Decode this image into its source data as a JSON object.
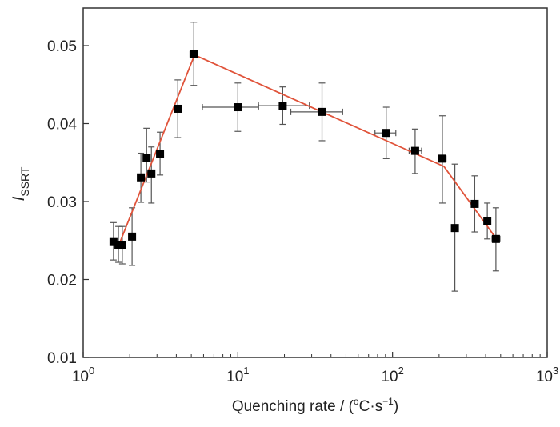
{
  "chart_data": {
    "type": "scatter",
    "title": "",
    "xlabel": "Quenching rate / (ºC·s⁻¹)",
    "xlabel_parts": {
      "main": "Quenching rate / (",
      "sup1": "o",
      "mid": "C·s",
      "sup2": "−1",
      "end": ")"
    },
    "ylabel": {
      "main": "I",
      "sub": "SSRT"
    },
    "xscale": "log",
    "xlim": [
      1,
      1000
    ],
    "ylim": [
      0.01,
      0.055
    ],
    "xticks": [
      {
        "v": 1,
        "base": "10",
        "exp": "0"
      },
      {
        "v": 10,
        "base": "10",
        "exp": "1"
      },
      {
        "v": 100,
        "base": "10",
        "exp": "2"
      },
      {
        "v": 1000,
        "base": "10",
        "exp": "3"
      }
    ],
    "yticks": [
      {
        "v": 0.01,
        "label": "0.01"
      },
      {
        "v": 0.02,
        "label": "0.02"
      },
      {
        "v": 0.03,
        "label": "0.03"
      },
      {
        "v": 0.04,
        "label": "0.04"
      },
      {
        "v": 0.05,
        "label": "0.05"
      }
    ],
    "grid": false,
    "marker_color": "#000000",
    "errorbar_color": "#555555",
    "fit_color": "#e0533a",
    "points": [
      {
        "x": 1.57,
        "y": 0.0248,
        "ylo": 0.0225,
        "yhi": 0.0273
      },
      {
        "x": 1.69,
        "y": 0.0244,
        "ylo": 0.0222,
        "yhi": 0.0268
      },
      {
        "x": 1.79,
        "y": 0.0244,
        "ylo": 0.022,
        "yhi": 0.0268
      },
      {
        "x": 2.07,
        "y": 0.0255,
        "ylo": 0.0218,
        "yhi": 0.0292
      },
      {
        "x": 2.36,
        "y": 0.0331,
        "ylo": 0.0299,
        "yhi": 0.0362
      },
      {
        "x": 2.57,
        "y": 0.0356,
        "ylo": 0.0325,
        "yhi": 0.0394
      },
      {
        "x": 2.76,
        "y": 0.0336,
        "ylo": 0.0298,
        "yhi": 0.037
      },
      {
        "x": 3.14,
        "y": 0.0361,
        "ylo": 0.0334,
        "yhi": 0.0389
      },
      {
        "x": 4.09,
        "y": 0.0419,
        "ylo": 0.0382,
        "yhi": 0.0456
      },
      {
        "x": 5.19,
        "y": 0.0489,
        "ylo": 0.0449,
        "yhi": 0.053,
        "xlo": 4.9,
        "xhi": 5.5
      },
      {
        "x": 10,
        "y": 0.0421,
        "ylo": 0.039,
        "yhi": 0.0452,
        "xlo": 5.9,
        "xhi": 13.6
      },
      {
        "x": 19.5,
        "y": 0.0423,
        "ylo": 0.0399,
        "yhi": 0.0447,
        "xlo": 13.6,
        "xhi": 29
      },
      {
        "x": 35,
        "y": 0.0415,
        "ylo": 0.0378,
        "yhi": 0.0452,
        "xlo": 22,
        "xhi": 47.6
      },
      {
        "x": 91,
        "y": 0.0388,
        "ylo": 0.0355,
        "yhi": 0.0421,
        "xlo": 77,
        "xhi": 105
      },
      {
        "x": 140,
        "y": 0.0365,
        "ylo": 0.0336,
        "yhi": 0.0393,
        "xlo": 128,
        "xhi": 154
      },
      {
        "x": 210,
        "y": 0.0355,
        "ylo": 0.0298,
        "yhi": 0.041,
        "xlo": 200,
        "xhi": 222
      },
      {
        "x": 253,
        "y": 0.0266,
        "ylo": 0.0185,
        "yhi": 0.0348
      },
      {
        "x": 340,
        "y": 0.0297,
        "ylo": 0.0261,
        "yhi": 0.0333
      },
      {
        "x": 410,
        "y": 0.0275,
        "ylo": 0.0252,
        "yhi": 0.0298
      },
      {
        "x": 466,
        "y": 0.0252,
        "ylo": 0.0211,
        "yhi": 0.0292,
        "xlo": 440,
        "xhi": 495
      }
    ],
    "fit_line": [
      {
        "x": 1.69,
        "y": 0.0243
      },
      {
        "x": 5.25,
        "y": 0.0488
      },
      {
        "x": 215,
        "y": 0.0345
      },
      {
        "x": 470,
        "y": 0.0252
      }
    ]
  }
}
